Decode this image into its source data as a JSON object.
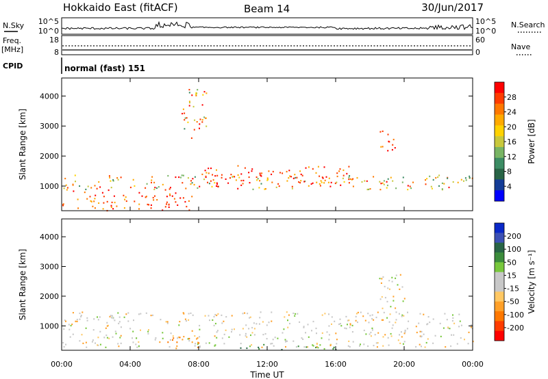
{
  "header": {
    "station": "Hokkaido East (fitACF)",
    "beam": "Beam 14",
    "date": "30/Jun/2017"
  },
  "top_panel": {
    "nsky_label": "N.Sky",
    "nsearch_label": "N.Search",
    "left_ticks": [
      "10^5",
      "10^0"
    ],
    "right_ticks": [
      "10^5",
      "10^0"
    ],
    "freq_label_1": "Freq.",
    "freq_label_2": "[MHz]",
    "freq_ticks": [
      "18",
      "8"
    ],
    "nave_label": "Nave",
    "nave_ticks": [
      "60",
      "0"
    ],
    "cpid_label": "CPID",
    "cpid_value": "normal (fast) 151"
  },
  "chart_data": [
    {
      "type": "heatmap",
      "name": "power",
      "ylabel": "Slant Range [km]",
      "xlabel": "Time UT",
      "x_ticks": [
        "00:00",
        "04:00",
        "08:00",
        "12:00",
        "16:00",
        "20:00",
        "00:00"
      ],
      "xlim_hours": [
        0,
        24
      ],
      "y_ticks": [
        1000,
        2000,
        3000,
        4000
      ],
      "ylim": [
        180,
        4600
      ],
      "colorbar": {
        "label": "Power [dB]",
        "ticks": [
          "28",
          "24",
          "20",
          "16",
          "12",
          "8",
          "4"
        ],
        "colors": [
          "#ff0000",
          "#ff3c00",
          "#ff7800",
          "#ffaa00",
          "#ffd200",
          "#c8c83c",
          "#78b464",
          "#3c8c64",
          "#286446",
          "#143c96",
          "#0000ff"
        ]
      },
      "regions": [
        {
          "t0": 0,
          "t1": 7.6,
          "r0": 200,
          "r1": 900,
          "dominant": "high"
        },
        {
          "t0": 0,
          "t1": 24,
          "r0": 900,
          "r1": 1400,
          "dominant": "mixed"
        },
        {
          "t0": 8,
          "t1": 17,
          "r0": 1000,
          "r1": 1700,
          "dominant": "high"
        },
        {
          "t0": 18.5,
          "t1": 19.5,
          "r0": 2000,
          "r1": 2900,
          "dominant": "high"
        },
        {
          "t0": 7,
          "t1": 8.5,
          "r0": 2500,
          "r1": 4300,
          "dominant": "mixed"
        }
      ]
    },
    {
      "type": "heatmap",
      "name": "velocity",
      "ylabel": "Slant Range [km]",
      "xlabel": "Time UT",
      "x_ticks": [
        "00:00",
        "04:00",
        "08:00",
        "12:00",
        "16:00",
        "20:00",
        "00:00"
      ],
      "xlim_hours": [
        0,
        24
      ],
      "y_ticks": [
        1000,
        2000,
        3000,
        4000
      ],
      "ylim": [
        180,
        4600
      ],
      "colorbar": {
        "label": "Velocity [m s⁻¹]",
        "ticks": [
          "200",
          "100",
          "50",
          "15",
          "-15",
          "-50",
          "-100",
          "-200"
        ],
        "colors": [
          "#0a28c8",
          "#3c50b4",
          "#286446",
          "#3c8c3c",
          "#78c83c",
          "#c8c8c8",
          "#c8c8c8",
          "#ffc864",
          "#ffa028",
          "#ff7800",
          "#ff3c00",
          "#ff0000"
        ]
      },
      "regions": [
        {
          "t0": 0,
          "t1": 24,
          "r0": 300,
          "r1": 1500,
          "dominant": "near-zero"
        },
        {
          "t0": 6,
          "t1": 8,
          "r0": 200,
          "r1": 700,
          "dominant": "negative"
        },
        {
          "t0": 10,
          "t1": 16,
          "r0": 200,
          "r1": 400,
          "dominant": "positive"
        },
        {
          "t0": 18.5,
          "t1": 20,
          "r0": 1500,
          "r1": 2800,
          "dominant": "near-zero"
        }
      ]
    }
  ]
}
